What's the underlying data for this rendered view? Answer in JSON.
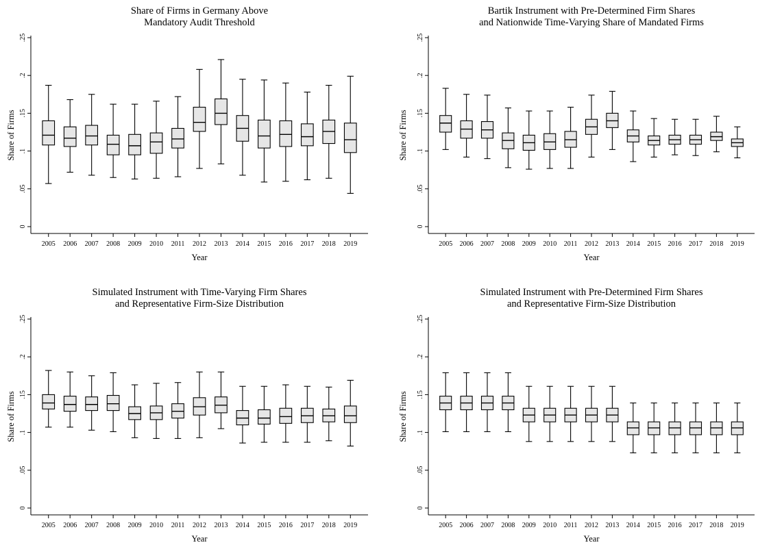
{
  "chart_data": [
    {
      "type": "box",
      "title": [
        "Share of Firms in Germany Above",
        "Mandatory Audit Threshold"
      ],
      "xlabel": "Year",
      "ylabel": "Share of Firms",
      "ylim": [
        0,
        0.25
      ],
      "yticks": [
        "0",
        ".05",
        ".1",
        ".15",
        ".2",
        ".25"
      ],
      "categories": [
        "2005",
        "2006",
        "2007",
        "2008",
        "2009",
        "2010",
        "2011",
        "2012",
        "2013",
        "2014",
        "2015",
        "2016",
        "2017",
        "2018",
        "2019"
      ],
      "boxes": [
        {
          "min": 0.057,
          "q1": 0.108,
          "median": 0.121,
          "q3": 0.14,
          "max": 0.187
        },
        {
          "min": 0.072,
          "q1": 0.106,
          "median": 0.117,
          "q3": 0.132,
          "max": 0.168
        },
        {
          "min": 0.068,
          "q1": 0.108,
          "median": 0.12,
          "q3": 0.134,
          "max": 0.175
        },
        {
          "min": 0.065,
          "q1": 0.095,
          "median": 0.109,
          "q3": 0.121,
          "max": 0.162
        },
        {
          "min": 0.063,
          "q1": 0.095,
          "median": 0.107,
          "q3": 0.122,
          "max": 0.162
        },
        {
          "min": 0.064,
          "q1": 0.097,
          "median": 0.112,
          "q3": 0.124,
          "max": 0.166
        },
        {
          "min": 0.066,
          "q1": 0.104,
          "median": 0.116,
          "q3": 0.13,
          "max": 0.172
        },
        {
          "min": 0.077,
          "q1": 0.126,
          "median": 0.138,
          "q3": 0.158,
          "max": 0.208
        },
        {
          "min": 0.083,
          "q1": 0.135,
          "median": 0.15,
          "q3": 0.169,
          "max": 0.221
        },
        {
          "min": 0.068,
          "q1": 0.113,
          "median": 0.13,
          "q3": 0.147,
          "max": 0.195
        },
        {
          "min": 0.059,
          "q1": 0.104,
          "median": 0.12,
          "q3": 0.141,
          "max": 0.194
        },
        {
          "min": 0.06,
          "q1": 0.106,
          "median": 0.122,
          "q3": 0.14,
          "max": 0.19
        },
        {
          "min": 0.062,
          "q1": 0.107,
          "median": 0.119,
          "q3": 0.136,
          "max": 0.178
        },
        {
          "min": 0.064,
          "q1": 0.11,
          "median": 0.126,
          "q3": 0.141,
          "max": 0.187
        },
        {
          "min": 0.044,
          "q1": 0.098,
          "median": 0.115,
          "q3": 0.137,
          "max": 0.199
        }
      ]
    },
    {
      "type": "box",
      "title": [
        "Bartik Instrument with Pre-Determined Firm Shares",
        "and Nationwide Time-Varying Share of Mandated Firms"
      ],
      "xlabel": "Year",
      "ylabel": "Share of Firms",
      "ylim": [
        0,
        0.25
      ],
      "yticks": [
        "0",
        ".05",
        ".1",
        ".15",
        ".2",
        ".25"
      ],
      "categories": [
        "2005",
        "2006",
        "2007",
        "2008",
        "2009",
        "2010",
        "2011",
        "2012",
        "2013",
        "2014",
        "2015",
        "2016",
        "2017",
        "2018",
        "2019"
      ],
      "boxes": [
        {
          "min": 0.102,
          "q1": 0.125,
          "median": 0.137,
          "q3": 0.147,
          "max": 0.183
        },
        {
          "min": 0.092,
          "q1": 0.117,
          "median": 0.129,
          "q3": 0.14,
          "max": 0.175
        },
        {
          "min": 0.09,
          "q1": 0.117,
          "median": 0.128,
          "q3": 0.139,
          "max": 0.174
        },
        {
          "min": 0.078,
          "q1": 0.103,
          "median": 0.114,
          "q3": 0.124,
          "max": 0.157
        },
        {
          "min": 0.076,
          "q1": 0.101,
          "median": 0.111,
          "q3": 0.121,
          "max": 0.153
        },
        {
          "min": 0.077,
          "q1": 0.102,
          "median": 0.112,
          "q3": 0.123,
          "max": 0.153
        },
        {
          "min": 0.077,
          "q1": 0.105,
          "median": 0.115,
          "q3": 0.126,
          "max": 0.158
        },
        {
          "min": 0.092,
          "q1": 0.122,
          "median": 0.132,
          "q3": 0.142,
          "max": 0.174
        },
        {
          "min": 0.102,
          "q1": 0.131,
          "median": 0.14,
          "q3": 0.15,
          "max": 0.179
        },
        {
          "min": 0.086,
          "q1": 0.112,
          "median": 0.12,
          "q3": 0.128,
          "max": 0.153
        },
        {
          "min": 0.092,
          "q1": 0.108,
          "median": 0.114,
          "q3": 0.12,
          "max": 0.143
        },
        {
          "min": 0.095,
          "q1": 0.109,
          "median": 0.115,
          "q3": 0.121,
          "max": 0.142
        },
        {
          "min": 0.094,
          "q1": 0.109,
          "median": 0.115,
          "q3": 0.121,
          "max": 0.142
        },
        {
          "min": 0.099,
          "q1": 0.114,
          "median": 0.119,
          "q3": 0.125,
          "max": 0.146
        },
        {
          "min": 0.091,
          "q1": 0.106,
          "median": 0.111,
          "q3": 0.116,
          "max": 0.132
        }
      ]
    },
    {
      "type": "box",
      "title": [
        "Simulated Instrument with Time-Varying Firm Shares",
        "and Representative Firm-Size Distribution"
      ],
      "xlabel": "Year",
      "ylabel": "Share of Firms",
      "ylim": [
        0,
        0.25
      ],
      "yticks": [
        "0",
        ".05",
        ".1",
        ".15",
        ".2",
        ".25"
      ],
      "categories": [
        "2005",
        "2006",
        "2007",
        "2008",
        "2009",
        "2010",
        "2011",
        "2012",
        "2013",
        "2014",
        "2015",
        "2016",
        "2017",
        "2018",
        "2019"
      ],
      "boxes": [
        {
          "min": 0.107,
          "q1": 0.131,
          "median": 0.139,
          "q3": 0.15,
          "max": 0.182
        },
        {
          "min": 0.107,
          "q1": 0.128,
          "median": 0.137,
          "q3": 0.148,
          "max": 0.18
        },
        {
          "min": 0.103,
          "q1": 0.129,
          "median": 0.137,
          "q3": 0.147,
          "max": 0.175
        },
        {
          "min": 0.101,
          "q1": 0.129,
          "median": 0.138,
          "q3": 0.149,
          "max": 0.179
        },
        {
          "min": 0.093,
          "q1": 0.117,
          "median": 0.125,
          "q3": 0.134,
          "max": 0.163
        },
        {
          "min": 0.092,
          "q1": 0.117,
          "median": 0.126,
          "q3": 0.135,
          "max": 0.165
        },
        {
          "min": 0.092,
          "q1": 0.119,
          "median": 0.128,
          "q3": 0.138,
          "max": 0.166
        },
        {
          "min": 0.093,
          "q1": 0.123,
          "median": 0.134,
          "q3": 0.146,
          "max": 0.18
        },
        {
          "min": 0.105,
          "q1": 0.126,
          "median": 0.136,
          "q3": 0.147,
          "max": 0.18
        },
        {
          "min": 0.086,
          "q1": 0.11,
          "median": 0.119,
          "q3": 0.129,
          "max": 0.161
        },
        {
          "min": 0.087,
          "q1": 0.111,
          "median": 0.119,
          "q3": 0.13,
          "max": 0.161
        },
        {
          "min": 0.087,
          "q1": 0.112,
          "median": 0.121,
          "q3": 0.132,
          "max": 0.163
        },
        {
          "min": 0.087,
          "q1": 0.113,
          "median": 0.122,
          "q3": 0.132,
          "max": 0.161
        },
        {
          "min": 0.089,
          "q1": 0.114,
          "median": 0.122,
          "q3": 0.131,
          "max": 0.16
        },
        {
          "min": 0.082,
          "q1": 0.113,
          "median": 0.122,
          "q3": 0.135,
          "max": 0.169
        }
      ]
    },
    {
      "type": "box",
      "title": [
        "Simulated Instrument with Pre-Determined Firm Shares",
        "and Representative Firm-Size Distribution"
      ],
      "xlabel": "Year",
      "ylabel": "Share of Firms",
      "ylim": [
        0,
        0.25
      ],
      "yticks": [
        "0",
        ".05",
        ".1",
        ".15",
        ".2",
        ".25"
      ],
      "categories": [
        "2005",
        "2006",
        "2007",
        "2008",
        "2009",
        "2010",
        "2011",
        "2012",
        "2013",
        "2014",
        "2015",
        "2016",
        "2017",
        "2018",
        "2019"
      ],
      "boxes": [
        {
          "min": 0.101,
          "q1": 0.13,
          "median": 0.139,
          "q3": 0.148,
          "max": 0.179
        },
        {
          "min": 0.101,
          "q1": 0.13,
          "median": 0.139,
          "q3": 0.148,
          "max": 0.179
        },
        {
          "min": 0.101,
          "q1": 0.13,
          "median": 0.139,
          "q3": 0.148,
          "max": 0.179
        },
        {
          "min": 0.101,
          "q1": 0.13,
          "median": 0.139,
          "q3": 0.148,
          "max": 0.179
        },
        {
          "min": 0.088,
          "q1": 0.114,
          "median": 0.123,
          "q3": 0.132,
          "max": 0.161
        },
        {
          "min": 0.088,
          "q1": 0.114,
          "median": 0.123,
          "q3": 0.132,
          "max": 0.161
        },
        {
          "min": 0.088,
          "q1": 0.114,
          "median": 0.123,
          "q3": 0.132,
          "max": 0.161
        },
        {
          "min": 0.088,
          "q1": 0.114,
          "median": 0.123,
          "q3": 0.132,
          "max": 0.161
        },
        {
          "min": 0.088,
          "q1": 0.114,
          "median": 0.123,
          "q3": 0.132,
          "max": 0.161
        },
        {
          "min": 0.073,
          "q1": 0.097,
          "median": 0.106,
          "q3": 0.114,
          "max": 0.139
        },
        {
          "min": 0.073,
          "q1": 0.097,
          "median": 0.106,
          "q3": 0.114,
          "max": 0.139
        },
        {
          "min": 0.073,
          "q1": 0.097,
          "median": 0.106,
          "q3": 0.114,
          "max": 0.139
        },
        {
          "min": 0.073,
          "q1": 0.097,
          "median": 0.106,
          "q3": 0.114,
          "max": 0.139
        },
        {
          "min": 0.073,
          "q1": 0.097,
          "median": 0.106,
          "q3": 0.114,
          "max": 0.139
        },
        {
          "min": 0.073,
          "q1": 0.097,
          "median": 0.106,
          "q3": 0.114,
          "max": 0.139
        }
      ]
    }
  ]
}
